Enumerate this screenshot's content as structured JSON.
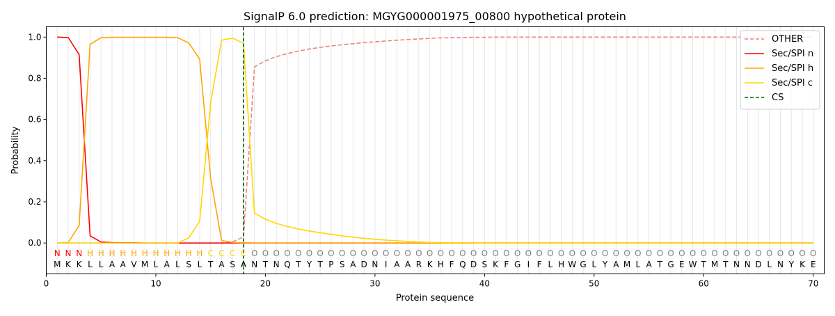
{
  "chart_data": {
    "type": "line",
    "title": "SignalP 6.0 prediction: MGYG000001975_00800 hypothetical protein",
    "xlabel": "Protein sequence",
    "ylabel": "Probability",
    "xlim": [
      0,
      71
    ],
    "ylim": [
      -0.15,
      1.05
    ],
    "x_ticks": [
      0,
      10,
      20,
      30,
      40,
      50,
      60,
      70
    ],
    "y_ticks": [
      0.0,
      0.2,
      0.4,
      0.6,
      0.8,
      1.0
    ],
    "x_tick_labels": [
      "0",
      "10",
      "20",
      "30",
      "40",
      "50",
      "60",
      "70"
    ],
    "y_tick_labels": [
      "0.0",
      "0.2",
      "0.4",
      "0.6",
      "0.8",
      "1.0"
    ],
    "grid": "vertical lines at each residue",
    "legend_position": "top-right",
    "sequence": "MKKLLAAVMLALSLTASANTNQTYTPSADNIAARKHFQDSKFGIFLHWGLYAMLATGEWTMTNNDLNYKE",
    "labels": "NNNHHHHHHHHHHHCCCCOOOOOOOOOOOOOOOOOOOOOOOOOOOOOOOOOOOOOOOOOOOOOOOOOOOO",
    "label_colors": {
      "N": "#ff0000",
      "H": "#ffa500",
      "C": "#ffd700",
      "O": "#808080"
    },
    "cs_position": 18,
    "series": [
      {
        "name": "OTHER",
        "color": "#f08080",
        "dash": true,
        "values": [
          0.0,
          0.0,
          0.0,
          0.0,
          0.0,
          0.0,
          0.0,
          0.0,
          0.0,
          0.0,
          0.0,
          0.0,
          0.0,
          0.0,
          0.0,
          0.0,
          0.005,
          0.03,
          0.855,
          0.885,
          0.905,
          0.92,
          0.932,
          0.942,
          0.95,
          0.957,
          0.963,
          0.968,
          0.973,
          0.977,
          0.981,
          0.985,
          0.988,
          0.991,
          0.994,
          0.996,
          0.997,
          0.998,
          0.999,
          0.999,
          1.0,
          1.0,
          1.0,
          1.0,
          1.0,
          1.0,
          1.0,
          1.0,
          1.0,
          1.0,
          1.0,
          1.0,
          1.0,
          1.0,
          1.0,
          1.0,
          1.0,
          1.0,
          1.0,
          1.0,
          1.0,
          1.0,
          1.0,
          1.0,
          1.0,
          1.0,
          1.0,
          1.0,
          1.0,
          1.0
        ]
      },
      {
        "name": "Sec/SPI n",
        "color": "#ff0000",
        "dash": false,
        "values": [
          1.0,
          0.998,
          0.915,
          0.035,
          0.005,
          0.002,
          0.001,
          0.001,
          0.0,
          0.0,
          0.0,
          0.0,
          0.0,
          0.0,
          0.0,
          0.0,
          0.0,
          0.0,
          0.0,
          0.0,
          0.0,
          0.0,
          0.0,
          0.0,
          0.0,
          0.0,
          0.0,
          0.0,
          0.0,
          0.0,
          0.0,
          0.0,
          0.0,
          0.0,
          0.0,
          0.0,
          0.0,
          0.0,
          0.0,
          0.0,
          0.0,
          0.0,
          0.0,
          0.0,
          0.0,
          0.0,
          0.0,
          0.0,
          0.0,
          0.0,
          0.0,
          0.0,
          0.0,
          0.0,
          0.0,
          0.0,
          0.0,
          0.0,
          0.0,
          0.0,
          0.0,
          0.0,
          0.0,
          0.0,
          0.0,
          0.0,
          0.0,
          0.0,
          0.0,
          0.0
        ]
      },
      {
        "name": "Sec/SPI h",
        "color": "#ffa500",
        "dash": false,
        "values": [
          0.0,
          0.002,
          0.085,
          0.965,
          0.997,
          0.999,
          0.999,
          0.999,
          0.999,
          0.999,
          0.999,
          0.997,
          0.972,
          0.893,
          0.315,
          0.012,
          0.003,
          0.001,
          0.0,
          0.0,
          0.0,
          0.0,
          0.0,
          0.0,
          0.0,
          0.0,
          0.0,
          0.0,
          0.0,
          0.0,
          0.0,
          0.0,
          0.0,
          0.0,
          0.0,
          0.0,
          0.0,
          0.0,
          0.0,
          0.0,
          0.0,
          0.0,
          0.0,
          0.0,
          0.0,
          0.0,
          0.0,
          0.0,
          0.0,
          0.0,
          0.0,
          0.0,
          0.0,
          0.0,
          0.0,
          0.0,
          0.0,
          0.0,
          0.0,
          0.0,
          0.0,
          0.0,
          0.0,
          0.0,
          0.0,
          0.0,
          0.0,
          0.0,
          0.0,
          0.0
        ]
      },
      {
        "name": "Sec/SPI c",
        "color": "#ffd700",
        "dash": false,
        "values": [
          0.0,
          0.0,
          0.0,
          0.0,
          0.0,
          0.0,
          0.0,
          0.0,
          0.0,
          0.0,
          0.0,
          0.0,
          0.025,
          0.105,
          0.68,
          0.985,
          0.995,
          0.97,
          0.145,
          0.115,
          0.095,
          0.08,
          0.068,
          0.058,
          0.05,
          0.042,
          0.035,
          0.028,
          0.023,
          0.018,
          0.014,
          0.011,
          0.008,
          0.005,
          0.003,
          0.002,
          0.001,
          0.001,
          0.0,
          0.0,
          0.0,
          0.0,
          0.0,
          0.0,
          0.0,
          0.0,
          0.0,
          0.0,
          0.0,
          0.0,
          0.0,
          0.0,
          0.0,
          0.0,
          0.0,
          0.0,
          0.0,
          0.0,
          0.0,
          0.0,
          0.0,
          0.0,
          0.0,
          0.0,
          0.0,
          0.0,
          0.0,
          0.0,
          0.0,
          0.0
        ]
      }
    ],
    "cs_legend": {
      "name": "CS",
      "color": "#006400"
    }
  }
}
